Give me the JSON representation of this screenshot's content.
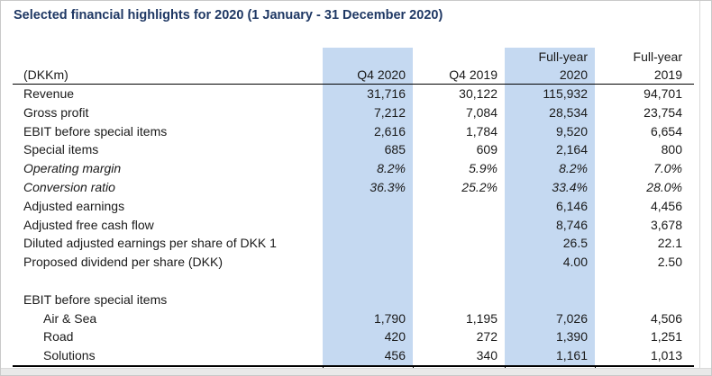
{
  "title": "Selected financial highlights for 2020 (1 January - 31 December 2020)",
  "colors": {
    "highlight": "#c5d9f1",
    "title": "#1f3864",
    "text": "#1a1a1a"
  },
  "table": {
    "unit_label": "(DKKm)",
    "columns": [
      {
        "line1": "",
        "line2": "Q4 2020",
        "highlight": true
      },
      {
        "line1": "",
        "line2": "Q4 2019",
        "highlight": false
      },
      {
        "line1": "Full-year",
        "line2": "2020",
        "highlight": true
      },
      {
        "line1": "Full-year",
        "line2": "2019",
        "highlight": false
      }
    ],
    "rows": [
      {
        "label": "Revenue",
        "style": "normal",
        "values": [
          "31,716",
          "30,122",
          "115,932",
          "94,701"
        ]
      },
      {
        "label": "Gross profit",
        "style": "normal",
        "values": [
          "7,212",
          "7,084",
          "28,534",
          "23,754"
        ]
      },
      {
        "label": "EBIT before special items",
        "style": "normal",
        "values": [
          "2,616",
          "1,784",
          "9,520",
          "6,654"
        ]
      },
      {
        "label": "Special items",
        "style": "normal",
        "values": [
          "685",
          "609",
          "2,164",
          "800"
        ]
      },
      {
        "label": "Operating margin",
        "style": "italic",
        "values": [
          "8.2%",
          "5.9%",
          "8.2%",
          "7.0%"
        ]
      },
      {
        "label": "Conversion ratio",
        "style": "italic",
        "values": [
          "36.3%",
          "25.2%",
          "33.4%",
          "28.0%"
        ]
      },
      {
        "label": "Adjusted earnings",
        "style": "normal",
        "values": [
          "",
          "",
          "6,146",
          "4,456"
        ]
      },
      {
        "label": "Adjusted free cash flow",
        "style": "normal",
        "values": [
          "",
          "",
          "8,746",
          "3,678"
        ]
      },
      {
        "label": "Diluted adjusted earnings per share of DKK 1",
        "style": "normal",
        "values": [
          "",
          "",
          "26.5",
          "22.1"
        ]
      },
      {
        "label": "Proposed dividend per share (DKK)",
        "style": "normal",
        "values": [
          "",
          "",
          "4.00",
          "2.50"
        ]
      },
      {
        "label": "",
        "style": "spacer",
        "values": [
          "",
          "",
          "",
          ""
        ]
      },
      {
        "label": "EBIT before special items",
        "style": "section",
        "values": [
          "",
          "",
          "",
          ""
        ]
      },
      {
        "label": "Air & Sea",
        "style": "indent",
        "values": [
          "1,790",
          "1,195",
          "7,026",
          "4,506"
        ]
      },
      {
        "label": "Road",
        "style": "indent",
        "values": [
          "420",
          "272",
          "1,390",
          "1,251"
        ]
      },
      {
        "label": "Solutions",
        "style": "indent",
        "values": [
          "456",
          "340",
          "1,161",
          "1,013"
        ]
      }
    ]
  }
}
